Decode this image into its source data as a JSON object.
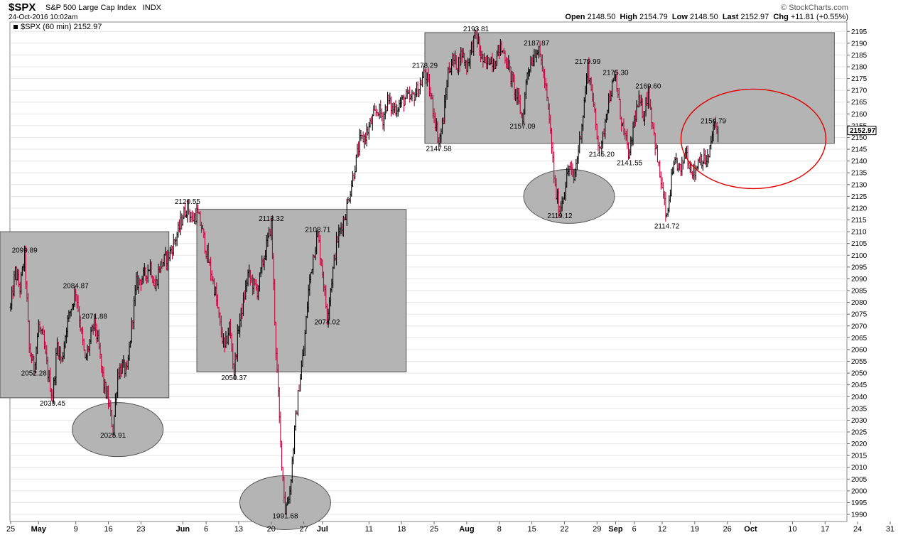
{
  "header": {
    "symbol": "$SPX",
    "description": "S&P 500 Large Cap Index",
    "exchange": "INDX",
    "datetime": "24-Oct-2016 10:02am",
    "brand": "© StockCharts.com",
    "open_label": "Open",
    "open": "2148.50",
    "high_label": "High",
    "high": "2154.79",
    "low_label": "Low",
    "low": "2148.50",
    "last_label": "Last",
    "last": "2152.97",
    "chg_label": "Chg",
    "chg": "+11.81 (+0.55%)"
  },
  "colors": {
    "up": "#000000",
    "down": "#c0003a",
    "zone_fill": "#b4b4b4",
    "zone_stroke": "#555555",
    "highlight": "#e00000",
    "grid": "#e6e6e6"
  },
  "chart_data": {
    "type": "ohlc",
    "legend": "$SPX (60 min) 2152.97",
    "last_value_label": "2152.97",
    "y_ticks": [
      1990,
      1995,
      2000,
      2005,
      2010,
      2015,
      2020,
      2025,
      2030,
      2035,
      2040,
      2045,
      2050,
      2055,
      2060,
      2065,
      2070,
      2075,
      2080,
      2085,
      2090,
      2095,
      2100,
      2105,
      2110,
      2115,
      2120,
      2125,
      2130,
      2135,
      2140,
      2145,
      2150,
      2155,
      2160,
      2165,
      2170,
      2175,
      2180,
      2185,
      2190,
      2195
    ],
    "ylim": [
      1987,
      2199
    ],
    "x_ticks": [
      {
        "label": "25",
        "day": 0,
        "bold": false
      },
      {
        "label": "May",
        "day": 6,
        "bold": true
      },
      {
        "label": "9",
        "day": 14,
        "bold": false
      },
      {
        "label": "16",
        "day": 21,
        "bold": false
      },
      {
        "label": "23",
        "day": 28,
        "bold": false
      },
      {
        "label": "Jun",
        "day": 37,
        "bold": true
      },
      {
        "label": "6",
        "day": 42,
        "bold": false
      },
      {
        "label": "13",
        "day": 49,
        "bold": false
      },
      {
        "label": "20",
        "day": 56,
        "bold": false
      },
      {
        "label": "27",
        "day": 63,
        "bold": false
      },
      {
        "label": "Jul",
        "day": 67,
        "bold": true
      },
      {
        "label": "11",
        "day": 77,
        "bold": false
      },
      {
        "label": "18",
        "day": 84,
        "bold": false
      },
      {
        "label": "25",
        "day": 91,
        "bold": false
      },
      {
        "label": "Aug",
        "day": 98,
        "bold": true
      },
      {
        "label": "8",
        "day": 105,
        "bold": false
      },
      {
        "label": "15",
        "day": 112,
        "bold": false
      },
      {
        "label": "22",
        "day": 119,
        "bold": false
      },
      {
        "label": "29",
        "day": 126,
        "bold": false
      },
      {
        "label": "Sep",
        "day": 130,
        "bold": true
      },
      {
        "label": "6",
        "day": 134,
        "bold": false
      },
      {
        "label": "12",
        "day": 140,
        "bold": false
      },
      {
        "label": "19",
        "day": 147,
        "bold": false
      },
      {
        "label": "26",
        "day": 154,
        "bold": false
      },
      {
        "label": "Oct",
        "day": 159,
        "bold": true
      },
      {
        "label": "10",
        "day": 168,
        "bold": false
      },
      {
        "label": "17",
        "day": 175,
        "bold": false
      },
      {
        "label": "24",
        "day": 182,
        "bold": false
      },
      {
        "label": "31",
        "day": 189,
        "bold": false
      }
    ],
    "series": [
      {
        "points": [
          [
            0,
            2078
          ],
          [
            1,
            2093
          ],
          [
            2,
            2086
          ],
          [
            3,
            2099.89
          ],
          [
            4,
            2060
          ],
          [
            5,
            2052.28
          ],
          [
            6,
            2070
          ],
          [
            7,
            2064
          ],
          [
            8,
            2050
          ],
          [
            9,
            2039.45
          ],
          [
            10,
            2062
          ],
          [
            11,
            2055
          ],
          [
            12,
            2070
          ],
          [
            13,
            2078
          ],
          [
            14,
            2084.87
          ],
          [
            15,
            2070
          ],
          [
            16,
            2055
          ],
          [
            17,
            2063
          ],
          [
            18,
            2071.88
          ],
          [
            19,
            2060
          ],
          [
            20,
            2045
          ],
          [
            21,
            2038
          ],
          [
            22,
            2025.91
          ],
          [
            23,
            2050
          ],
          [
            24,
            2053
          ],
          [
            25,
            2050
          ],
          [
            26,
            2070
          ],
          [
            27,
            2088
          ],
          [
            28,
            2090
          ],
          [
            29,
            2092
          ],
          [
            30,
            2096
          ],
          [
            31,
            2086
          ],
          [
            32,
            2095
          ],
          [
            33,
            2098
          ],
          [
            34,
            2100
          ],
          [
            35,
            2105
          ],
          [
            36,
            2110
          ],
          [
            37,
            2117
          ],
          [
            38,
            2120.55
          ],
          [
            39,
            2115
          ],
          [
            40,
            2118
          ],
          [
            41,
            2112
          ],
          [
            42,
            2102
          ],
          [
            43,
            2093
          ],
          [
            44,
            2084
          ],
          [
            45,
            2070
          ],
          [
            46,
            2060
          ],
          [
            47,
            2070
          ],
          [
            48,
            2050.37
          ],
          [
            49,
            2070
          ],
          [
            50,
            2080
          ],
          [
            51,
            2092
          ],
          [
            52,
            2088
          ],
          [
            53,
            2085
          ],
          [
            54,
            2095
          ],
          [
            55,
            2104
          ],
          [
            56,
            2113.32
          ],
          [
            57,
            2060
          ],
          [
            58,
            2020
          ],
          [
            59,
            1991.68
          ],
          [
            60,
            2000
          ],
          [
            61,
            2025
          ],
          [
            62,
            2045
          ],
          [
            63,
            2060
          ],
          [
            64,
            2085
          ],
          [
            65,
            2100
          ],
          [
            66,
            2108.71
          ],
          [
            67,
            2093
          ],
          [
            68,
            2074.02
          ],
          [
            69,
            2090
          ],
          [
            70,
            2105
          ],
          [
            71,
            2112
          ],
          [
            72,
            2118
          ],
          [
            73,
            2128
          ],
          [
            74,
            2138
          ],
          [
            75,
            2148
          ],
          [
            76,
            2150
          ],
          [
            77,
            2154
          ],
          [
            78,
            2159
          ],
          [
            79,
            2162
          ],
          [
            80,
            2158
          ],
          [
            81,
            2166
          ],
          [
            82,
            2162
          ],
          [
            83,
            2163
          ],
          [
            84,
            2165
          ],
          [
            85,
            2167
          ],
          [
            86,
            2166
          ],
          [
            87,
            2169
          ],
          [
            88,
            2172
          ],
          [
            89,
            2178.29
          ],
          [
            90,
            2170
          ],
          [
            91,
            2160
          ],
          [
            92,
            2147.58
          ],
          [
            93,
            2158
          ],
          [
            94,
            2178
          ],
          [
            95,
            2183
          ],
          [
            96,
            2181
          ],
          [
            97,
            2186
          ],
          [
            98,
            2180
          ],
          [
            99,
            2188
          ],
          [
            100,
            2193.81
          ],
          [
            101,
            2185
          ],
          [
            102,
            2180
          ],
          [
            103,
            2184
          ],
          [
            104,
            2182
          ],
          [
            105,
            2188
          ],
          [
            106,
            2186
          ],
          [
            107,
            2180
          ],
          [
            108,
            2172
          ],
          [
            109,
            2166
          ],
          [
            110,
            2157.09
          ],
          [
            111,
            2178
          ],
          [
            112,
            2183
          ],
          [
            113,
            2187.87
          ],
          [
            114,
            2183
          ],
          [
            115,
            2170
          ],
          [
            116,
            2152
          ],
          [
            117,
            2128
          ],
          [
            118,
            2119.12
          ],
          [
            119,
            2128
          ],
          [
            120,
            2138
          ],
          [
            121,
            2132
          ],
          [
            122,
            2145
          ],
          [
            123,
            2160
          ],
          [
            124,
            2179.99
          ],
          [
            125,
            2168
          ],
          [
            126,
            2150
          ],
          [
            127,
            2145.2
          ],
          [
            128,
            2162
          ],
          [
            129,
            2170
          ],
          [
            130,
            2175.3
          ],
          [
            131,
            2160
          ],
          [
            132,
            2150
          ],
          [
            133,
            2141.55
          ],
          [
            134,
            2158
          ],
          [
            135,
            2165
          ],
          [
            136,
            2160
          ],
          [
            137,
            2169.6
          ],
          [
            138,
            2155
          ],
          [
            139,
            2140
          ],
          [
            140,
            2128
          ],
          [
            141,
            2114.72
          ],
          [
            142,
            2132
          ],
          [
            143,
            2140
          ],
          [
            144,
            2135
          ],
          [
            145,
            2145
          ],
          [
            146,
            2138
          ],
          [
            147,
            2135
          ],
          [
            148,
            2142
          ],
          [
            149,
            2140
          ],
          [
            150,
            2141
          ],
          [
            151,
            2154.79
          ],
          [
            152,
            2152.97
          ]
        ]
      }
    ],
    "annotations": [
      {
        "text": "2099.89",
        "d": 3,
        "v": 2099.89,
        "pos": "above"
      },
      {
        "text": "2052.28",
        "d": 5,
        "v": 2052.28,
        "pos": "below"
      },
      {
        "text": "2039.45",
        "d": 9,
        "v": 2039.45,
        "pos": "below"
      },
      {
        "text": "2084.87",
        "d": 14,
        "v": 2084.87,
        "pos": "above"
      },
      {
        "text": "2071.88",
        "d": 18,
        "v": 2071.88,
        "pos": "above"
      },
      {
        "text": "2025.91",
        "d": 22,
        "v": 2025.91,
        "pos": "below"
      },
      {
        "text": "2120.55",
        "d": 38,
        "v": 2120.55,
        "pos": "above"
      },
      {
        "text": "2050.37",
        "d": 48,
        "v": 2050.37,
        "pos": "below"
      },
      {
        "text": "2113.32",
        "d": 56,
        "v": 2113.32,
        "pos": "above"
      },
      {
        "text": "1991.68",
        "d": 59,
        "v": 1991.68,
        "pos": "below"
      },
      {
        "text": "2108.71",
        "d": 66,
        "v": 2108.71,
        "pos": "above"
      },
      {
        "text": "2074.02",
        "d": 68,
        "v": 2074.02,
        "pos": "below"
      },
      {
        "text": "2178.29",
        "d": 89,
        "v": 2178.29,
        "pos": "above"
      },
      {
        "text": "2147.58",
        "d": 92,
        "v": 2147.58,
        "pos": "below"
      },
      {
        "text": "2193.81",
        "d": 100,
        "v": 2193.81,
        "pos": "above"
      },
      {
        "text": "2157.09",
        "d": 110,
        "v": 2157.09,
        "pos": "below"
      },
      {
        "text": "2187.87",
        "d": 113,
        "v": 2187.87,
        "pos": "above"
      },
      {
        "text": "2119.12",
        "d": 118,
        "v": 2119.12,
        "pos": "below"
      },
      {
        "text": "2179.99",
        "d": 124,
        "v": 2179.99,
        "pos": "above"
      },
      {
        "text": "2145.20",
        "d": 127,
        "v": 2145.2,
        "pos": "below"
      },
      {
        "text": "2175.30",
        "d": 130,
        "v": 2175.3,
        "pos": "above"
      },
      {
        "text": "2141.55",
        "d": 133,
        "v": 2141.55,
        "pos": "below"
      },
      {
        "text": "2169.60",
        "d": 137,
        "v": 2169.6,
        "pos": "above"
      },
      {
        "text": "2114.72",
        "d": 141,
        "v": 2114.72,
        "pos": "below"
      },
      {
        "text": "2154.79",
        "d": 151,
        "v": 2154.79,
        "pos": "above"
      }
    ],
    "zones": [
      {
        "d0": -6,
        "d1": 34,
        "v_lo": 2039.5,
        "v_hi": 2110
      },
      {
        "d0": 40,
        "d1": 85,
        "v_lo": 2050.5,
        "v_hi": 2119.5
      },
      {
        "d0": 89,
        "d1": 177,
        "v_lo": 2147.5,
        "v_hi": 2194.5
      }
    ],
    "support_circles": [
      {
        "d": 23,
        "v": 2026
      },
      {
        "d": 59,
        "v": 1995
      },
      {
        "d": 120,
        "v": 2125
      }
    ],
    "highlight_circle": {
      "d": 159,
      "v": 2150
    }
  }
}
